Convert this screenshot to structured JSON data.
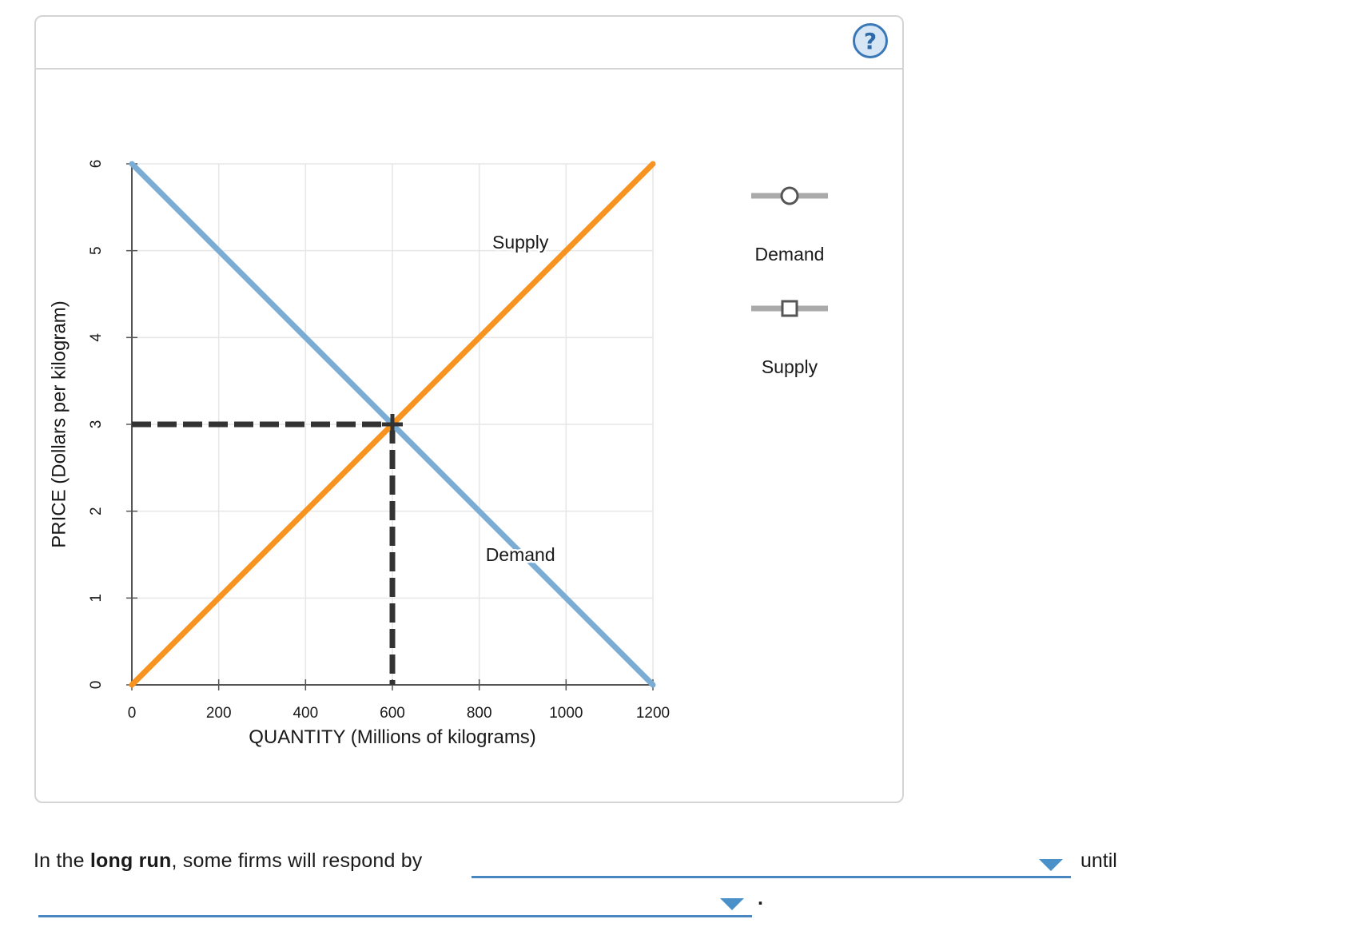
{
  "help": {
    "label": "?"
  },
  "chart_data": {
    "type": "line",
    "xlabel": "QUANTITY (Millions of kilograms)",
    "ylabel": "PRICE (Dollars per kilogram)",
    "xlim": [
      0,
      1200
    ],
    "ylim": [
      0,
      6
    ],
    "x_ticks": [
      "0",
      "200",
      "400",
      "600",
      "800",
      "1000",
      "1200"
    ],
    "y_ticks": [
      "0",
      "1",
      "2",
      "3",
      "4",
      "5",
      "6"
    ],
    "grid": true,
    "series": [
      {
        "name": "Demand",
        "color": "#7aacd4",
        "points": [
          [
            0,
            6
          ],
          [
            1200,
            0
          ]
        ]
      },
      {
        "name": "Supply",
        "color": "#f7931e",
        "points": [
          [
            0,
            0
          ],
          [
            1200,
            6
          ]
        ]
      }
    ],
    "curve_labels": [
      {
        "text": "Supply",
        "x": 950,
        "y": 5.1
      },
      {
        "text": "Demand",
        "x": 950,
        "y": 1.5
      }
    ],
    "equilibrium": {
      "x": 600,
      "y": 3
    },
    "legend": {
      "placement": "right",
      "items": [
        {
          "label": "Demand",
          "marker": "circle",
          "color": "#aaaaaa"
        },
        {
          "label": "Supply",
          "marker": "square",
          "color": "#aaaaaa"
        }
      ]
    }
  },
  "question": {
    "prefix": "In the ",
    "bold": "long run",
    "suffix": ", some firms will respond by",
    "dropdown1_value": "",
    "middle": "until",
    "dropdown2_value": "",
    "end": "."
  }
}
